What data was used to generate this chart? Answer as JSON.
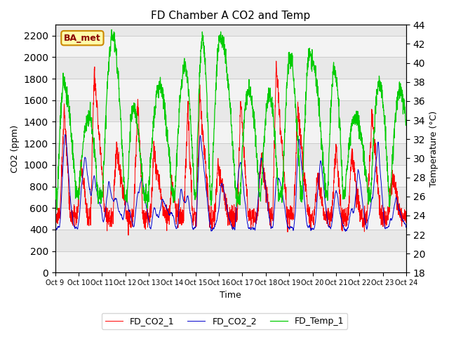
{
  "title": "FD Chamber A CO2 and Temp",
  "xlabel": "Time",
  "ylabel_left": "CO2 (ppm)",
  "ylabel_right": "Temperature (°C)",
  "ylim_left": [
    0,
    2300
  ],
  "ylim_right": [
    18,
    44
  ],
  "yticks_left": [
    0,
    200,
    400,
    600,
    800,
    1000,
    1200,
    1400,
    1600,
    1800,
    2000,
    2200
  ],
  "yticks_right": [
    18,
    20,
    22,
    24,
    26,
    28,
    30,
    32,
    34,
    36,
    38,
    40,
    42,
    44
  ],
  "xtick_labels": [
    "Oct 9",
    "Oct 10",
    "Oct 11",
    "Oct 12",
    "Oct 13",
    "Oct 14",
    "Oct 15",
    "Oct 16",
    "Oct 17",
    "Oct 18",
    "Oct 19",
    "Oct 20",
    "Oct 21",
    "Oct 22",
    "Oct 23",
    "Oct 24"
  ],
  "color_co2_1": "#ff0000",
  "color_co2_2": "#0000cc",
  "color_temp_1": "#00cc00",
  "legend_labels": [
    "FD_CO2_1",
    "FD_CO2_2",
    "FD_Temp_1"
  ],
  "watermark_text": "BA_met",
  "watermark_bg": "#ffffaa",
  "watermark_border": "#cc8800",
  "grid_color": "#cccccc",
  "plot_bg": "#e8e8e8",
  "n_points": 2000
}
